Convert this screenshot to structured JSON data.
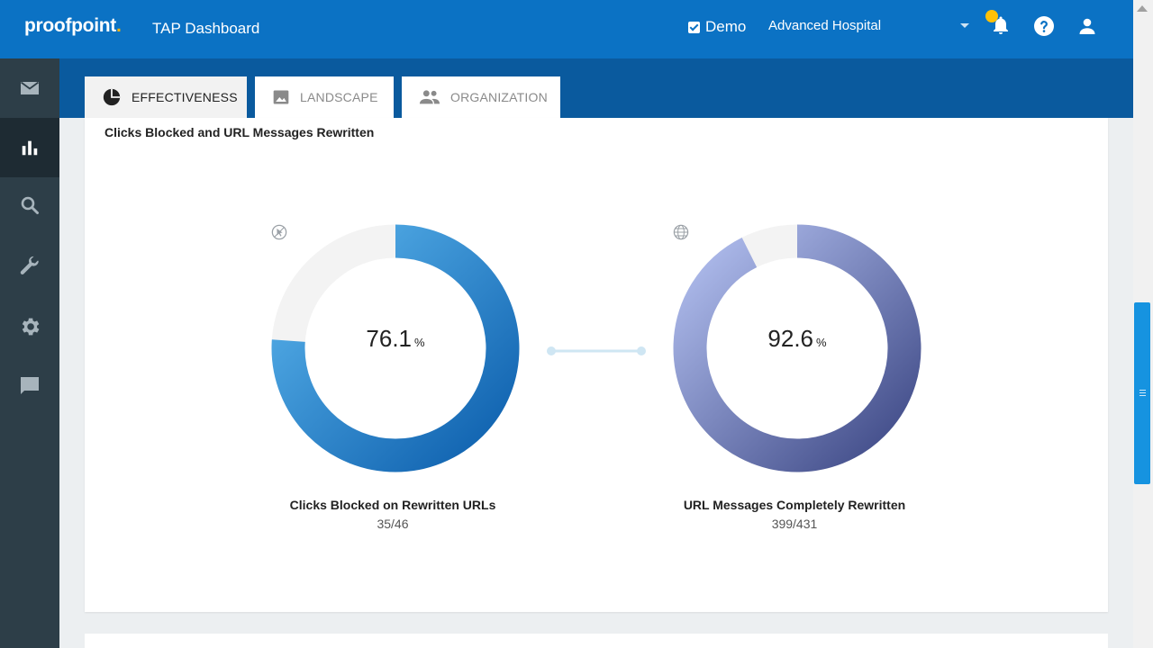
{
  "header": {
    "logo": "proofpoint",
    "logo_dot": ".",
    "app_title": "TAP Dashboard",
    "demo_label": "Demo",
    "demo_checked": true,
    "organization": "Advanced Hospital"
  },
  "sidebar": {
    "items": [
      {
        "icon": "mail-icon"
      },
      {
        "icon": "bar-chart-icon",
        "active": true
      },
      {
        "icon": "search-icon"
      },
      {
        "icon": "wrench-icon"
      },
      {
        "icon": "gear-icon"
      },
      {
        "icon": "chat-icon"
      }
    ]
  },
  "tabs": [
    {
      "label": "EFFECTIVENESS",
      "icon": "pie-chart-icon",
      "active": true
    },
    {
      "label": "LANDSCAPE",
      "icon": "image-icon"
    },
    {
      "label": "ORGANIZATION",
      "icon": "people-icon"
    }
  ],
  "card": {
    "title": "Clicks Blocked and URL Messages Rewritten",
    "rings": [
      {
        "percent": "76.1",
        "percent_sign": "%",
        "label": "Clicks Blocked on Rewritten URLs",
        "count": "35/46",
        "icon": "cursor-blocked-icon",
        "fraction": 0.761,
        "colors": [
          "#5ab4ec",
          "#0d5fad"
        ]
      },
      {
        "percent": "92.6",
        "percent_sign": "%",
        "label": "URL Messages Completely Rewritten",
        "count": "399/431",
        "icon": "globe-icon",
        "fraction": 0.926,
        "colors": [
          "#b3c0f0",
          "#3d4885"
        ]
      }
    ]
  },
  "colors": {
    "header_bg": "#0b72c4",
    "tab_band": "#0a5a9e",
    "sidebar_bg": "#2d3e48",
    "scroll_thumb": "#1693e0"
  }
}
